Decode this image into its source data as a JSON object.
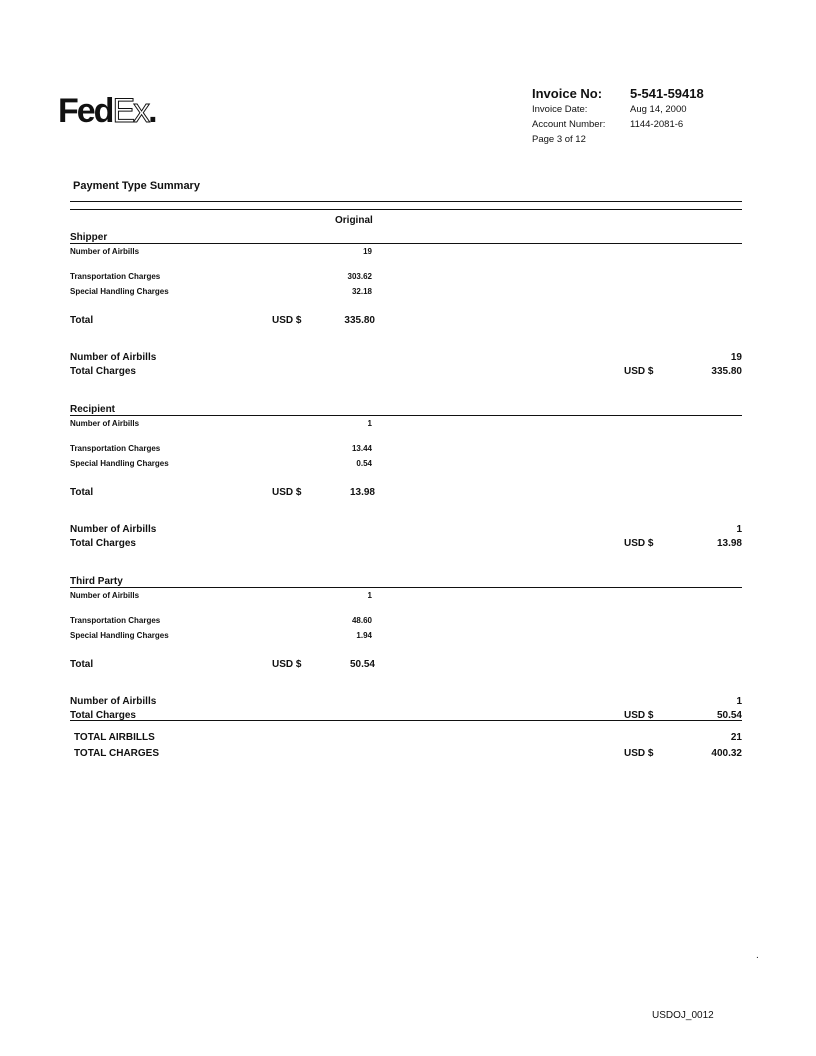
{
  "header": {
    "logo": "FedEx.",
    "invoice_no_label": "Invoice No:",
    "invoice_no": "5-541-59418",
    "invoice_date_label": "Invoice Date:",
    "invoice_date": "Aug 14, 2000",
    "account_label": "Account Number:",
    "account": "1144-2081-6",
    "page": "Page 3 of 12"
  },
  "title": "Payment Type Summary",
  "column_header": "Original",
  "sections": [
    {
      "name": "Shipper",
      "airbills_label": "Number of Airbills",
      "airbills": "19",
      "transport_label": "Transportation Charges",
      "transport": "303.62",
      "special_label": "Special Handling Charges",
      "special": "32.18",
      "total_label": "Total",
      "currency": "USD $",
      "total": "335.80",
      "sum_airbills_label": "Number of Airbills",
      "sum_airbills": "19",
      "sum_charges_label": "Total Charges",
      "sum_currency": "USD $",
      "sum_charges": "335.80"
    },
    {
      "name": "Recipient",
      "airbills_label": "Number of Airbills",
      "airbills": "1",
      "transport_label": "Transportation Charges",
      "transport": "13.44",
      "special_label": "Special Handling Charges",
      "special": "0.54",
      "total_label": "Total",
      "currency": "USD $",
      "total": "13.98",
      "sum_airbills_label": "Number of Airbills",
      "sum_airbills": "1",
      "sum_charges_label": "Total Charges",
      "sum_currency": "USD $",
      "sum_charges": "13.98"
    },
    {
      "name": "Third Party",
      "airbills_label": "Number of Airbills",
      "airbills": "1",
      "transport_label": "Transportation Charges",
      "transport": "48.60",
      "special_label": "Special Handling Charges",
      "special": "1.94",
      "total_label": "Total",
      "currency": "USD $",
      "total": "50.54",
      "sum_airbills_label": "Number of Airbills",
      "sum_airbills": "1",
      "sum_charges_label": "Total Charges",
      "sum_currency": "USD $",
      "sum_charges": "50.54"
    }
  ],
  "grand": {
    "airbills_label": "TOTAL AIRBILLS",
    "airbills": "21",
    "charges_label": "TOTAL CHARGES",
    "currency": "USD $",
    "charges": "400.32"
  },
  "footer": {
    "bates": "USDOJ_0012"
  }
}
